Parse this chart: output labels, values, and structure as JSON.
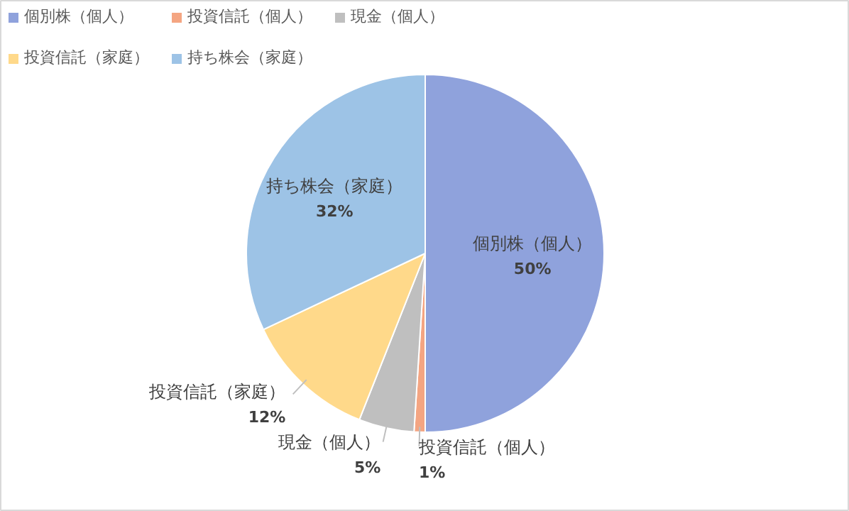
{
  "chart_data": {
    "type": "pie",
    "categories": [
      "個別株（個人）",
      "投資信託（個人）",
      "現金（個人）",
      "投資信託（家庭）",
      "持ち株会（家庭）"
    ],
    "values": [
      50,
      1,
      5,
      12,
      32
    ],
    "value_labels": [
      "50%",
      "1%",
      "5%",
      "12%",
      "32%"
    ],
    "colors": [
      "#8fa2dc",
      "#f4a582",
      "#bfbfbf",
      "#ffd98a",
      "#9dc3e6"
    ],
    "legend": "top left"
  }
}
